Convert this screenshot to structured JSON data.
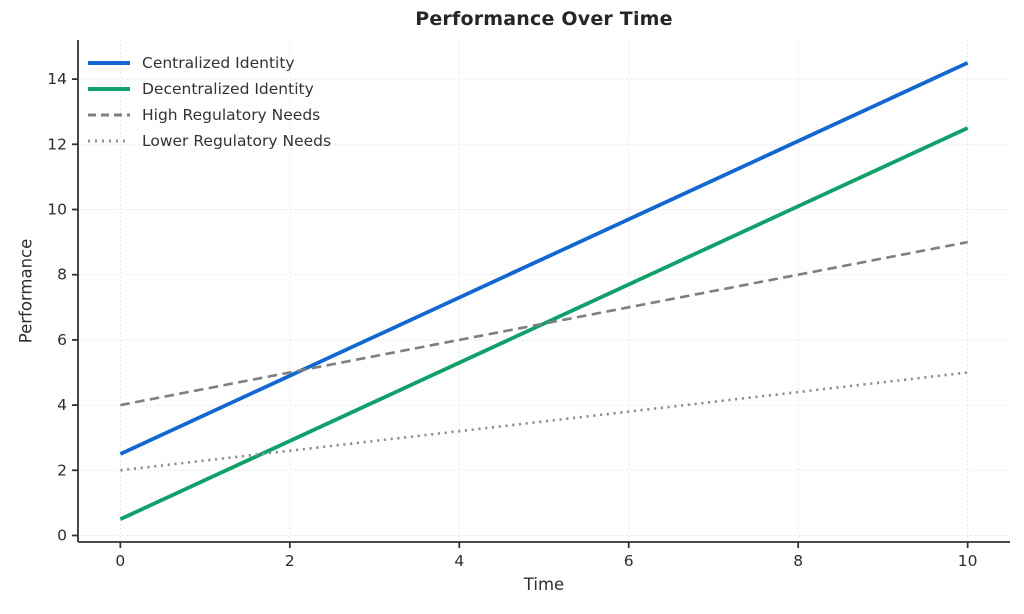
{
  "chart_data": {
    "type": "line",
    "title": "Performance Over Time",
    "xlabel": "Time",
    "ylabel": "Performance",
    "xlim": [
      -0.5,
      10.5
    ],
    "ylim": [
      -0.2,
      15.2
    ],
    "xticks": [
      0,
      2,
      4,
      6,
      8,
      10
    ],
    "yticks": [
      0,
      2,
      4,
      6,
      8,
      10,
      12,
      14
    ],
    "grid": true,
    "legend_position": "upper-left",
    "x": [
      0,
      10
    ],
    "series": [
      {
        "name": "Centralized Identity",
        "style": "solid",
        "color": "#1267d1",
        "values": [
          2.5,
          14.5
        ]
      },
      {
        "name": "Decentralized Identity",
        "style": "solid",
        "color": "#10a06a",
        "values": [
          0.5,
          12.5
        ]
      },
      {
        "name": "High Regulatory Needs",
        "style": "dashed",
        "color": "#7f7f7f",
        "values": [
          4.0,
          9.0
        ]
      },
      {
        "name": "Lower Regulatory Needs",
        "style": "dotted",
        "color": "#8f8f8f",
        "values": [
          2.0,
          5.0
        ]
      }
    ],
    "colors": {
      "grid": "#e2e2e2",
      "spine": "#333333",
      "tick_label": "#2e2e2e",
      "title": "#262626"
    }
  }
}
